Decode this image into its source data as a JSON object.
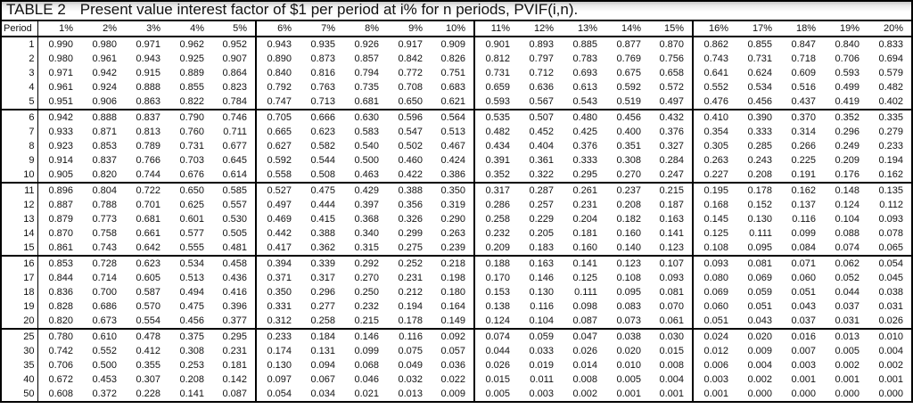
{
  "title": {
    "label": "TABLE 2",
    "description": "Present value interest factor of $1 per period at i% for n periods, PVIF(i,n)."
  },
  "colors": {
    "text": "#111111",
    "border": "#000000",
    "background": "#ffffff",
    "title_gradient_top": "#c7c7c7"
  },
  "table": {
    "period_header": "Period",
    "rate_headers": [
      "1%",
      "2%",
      "3%",
      "4%",
      "5%",
      "6%",
      "7%",
      "8%",
      "9%",
      "10%",
      "11%",
      "12%",
      "13%",
      "14%",
      "15%",
      "16%",
      "17%",
      "18%",
      "19%",
      "20%"
    ],
    "band_end_periods": [
      "5",
      "10",
      "15",
      "20"
    ],
    "rows": [
      {
        "period": "1",
        "values": [
          "0.990",
          "0.980",
          "0.971",
          "0.962",
          "0.952",
          "0.943",
          "0.935",
          "0.926",
          "0.917",
          "0.909",
          "0.901",
          "0.893",
          "0.885",
          "0.877",
          "0.870",
          "0.862",
          "0.855",
          "0.847",
          "0.840",
          "0.833"
        ]
      },
      {
        "period": "2",
        "values": [
          "0.980",
          "0.961",
          "0.943",
          "0.925",
          "0.907",
          "0.890",
          "0.873",
          "0.857",
          "0.842",
          "0.826",
          "0.812",
          "0.797",
          "0.783",
          "0.769",
          "0.756",
          "0.743",
          "0.731",
          "0.718",
          "0.706",
          "0.694"
        ]
      },
      {
        "period": "3",
        "values": [
          "0.971",
          "0.942",
          "0.915",
          "0.889",
          "0.864",
          "0.840",
          "0.816",
          "0.794",
          "0.772",
          "0.751",
          "0.731",
          "0.712",
          "0.693",
          "0.675",
          "0.658",
          "0.641",
          "0.624",
          "0.609",
          "0.593",
          "0.579"
        ]
      },
      {
        "period": "4",
        "values": [
          "0.961",
          "0.924",
          "0.888",
          "0.855",
          "0.823",
          "0.792",
          "0.763",
          "0.735",
          "0.708",
          "0.683",
          "0.659",
          "0.636",
          "0.613",
          "0.592",
          "0.572",
          "0.552",
          "0.534",
          "0.516",
          "0.499",
          "0.482"
        ]
      },
      {
        "period": "5",
        "values": [
          "0.951",
          "0.906",
          "0.863",
          "0.822",
          "0.784",
          "0.747",
          "0.713",
          "0.681",
          "0.650",
          "0.621",
          "0.593",
          "0.567",
          "0.543",
          "0.519",
          "0.497",
          "0.476",
          "0.456",
          "0.437",
          "0.419",
          "0.402"
        ]
      },
      {
        "period": "6",
        "values": [
          "0.942",
          "0.888",
          "0.837",
          "0.790",
          "0.746",
          "0.705",
          "0.666",
          "0.630",
          "0.596",
          "0.564",
          "0.535",
          "0.507",
          "0.480",
          "0.456",
          "0.432",
          "0.410",
          "0.390",
          "0.370",
          "0.352",
          "0.335"
        ]
      },
      {
        "period": "7",
        "values": [
          "0.933",
          "0.871",
          "0.813",
          "0.760",
          "0.711",
          "0.665",
          "0.623",
          "0.583",
          "0.547",
          "0.513",
          "0.482",
          "0.452",
          "0.425",
          "0.400",
          "0.376",
          "0.354",
          "0.333",
          "0.314",
          "0.296",
          "0.279"
        ]
      },
      {
        "period": "8",
        "values": [
          "0.923",
          "0.853",
          "0.789",
          "0.731",
          "0.677",
          "0.627",
          "0.582",
          "0.540",
          "0.502",
          "0.467",
          "0.434",
          "0.404",
          "0.376",
          "0.351",
          "0.327",
          "0.305",
          "0.285",
          "0.266",
          "0.249",
          "0.233"
        ]
      },
      {
        "period": "9",
        "values": [
          "0.914",
          "0.837",
          "0.766",
          "0.703",
          "0.645",
          "0.592",
          "0.544",
          "0.500",
          "0.460",
          "0.424",
          "0.391",
          "0.361",
          "0.333",
          "0.308",
          "0.284",
          "0.263",
          "0.243",
          "0.225",
          "0.209",
          "0.194"
        ]
      },
      {
        "period": "10",
        "values": [
          "0.905",
          "0.820",
          "0.744",
          "0.676",
          "0.614",
          "0.558",
          "0.508",
          "0.463",
          "0.422",
          "0.386",
          "0.352",
          "0.322",
          "0.295",
          "0.270",
          "0.247",
          "0.227",
          "0.208",
          "0.191",
          "0.176",
          "0.162"
        ]
      },
      {
        "period": "11",
        "values": [
          "0.896",
          "0.804",
          "0.722",
          "0.650",
          "0.585",
          "0.527",
          "0.475",
          "0.429",
          "0.388",
          "0.350",
          "0.317",
          "0.287",
          "0.261",
          "0.237",
          "0.215",
          "0.195",
          "0.178",
          "0.162",
          "0.148",
          "0.135"
        ]
      },
      {
        "period": "12",
        "values": [
          "0.887",
          "0.788",
          "0.701",
          "0.625",
          "0.557",
          "0.497",
          "0.444",
          "0.397",
          "0.356",
          "0.319",
          "0.286",
          "0.257",
          "0.231",
          "0.208",
          "0.187",
          "0.168",
          "0.152",
          "0.137",
          "0.124",
          "0.112"
        ]
      },
      {
        "period": "13",
        "values": [
          "0.879",
          "0.773",
          "0.681",
          "0.601",
          "0.530",
          "0.469",
          "0.415",
          "0.368",
          "0.326",
          "0.290",
          "0.258",
          "0.229",
          "0.204",
          "0.182",
          "0.163",
          "0.145",
          "0.130",
          "0.116",
          "0.104",
          "0.093"
        ]
      },
      {
        "period": "14",
        "values": [
          "0.870",
          "0.758",
          "0.661",
          "0.577",
          "0.505",
          "0.442",
          "0.388",
          "0.340",
          "0.299",
          "0.263",
          "0.232",
          "0.205",
          "0.181",
          "0.160",
          "0.141",
          "0.125",
          "0.111",
          "0.099",
          "0.088",
          "0.078"
        ]
      },
      {
        "period": "15",
        "values": [
          "0.861",
          "0.743",
          "0.642",
          "0.555",
          "0.481",
          "0.417",
          "0.362",
          "0.315",
          "0.275",
          "0.239",
          "0.209",
          "0.183",
          "0.160",
          "0.140",
          "0.123",
          "0.108",
          "0.095",
          "0.084",
          "0.074",
          "0.065"
        ]
      },
      {
        "period": "16",
        "values": [
          "0.853",
          "0.728",
          "0.623",
          "0.534",
          "0.458",
          "0.394",
          "0.339",
          "0.292",
          "0.252",
          "0.218",
          "0.188",
          "0.163",
          "0.141",
          "0.123",
          "0.107",
          "0.093",
          "0.081",
          "0.071",
          "0.062",
          "0.054"
        ]
      },
      {
        "period": "17",
        "values": [
          "0.844",
          "0.714",
          "0.605",
          "0.513",
          "0.436",
          "0.371",
          "0.317",
          "0.270",
          "0.231",
          "0.198",
          "0.170",
          "0.146",
          "0.125",
          "0.108",
          "0.093",
          "0.080",
          "0.069",
          "0.060",
          "0.052",
          "0.045"
        ]
      },
      {
        "period": "18",
        "values": [
          "0.836",
          "0.700",
          "0.587",
          "0.494",
          "0.416",
          "0.350",
          "0.296",
          "0.250",
          "0.212",
          "0.180",
          "0.153",
          "0.130",
          "0.111",
          "0.095",
          "0.081",
          "0.069",
          "0.059",
          "0.051",
          "0.044",
          "0.038"
        ]
      },
      {
        "period": "19",
        "values": [
          "0.828",
          "0.686",
          "0.570",
          "0.475",
          "0.396",
          "0.331",
          "0.277",
          "0.232",
          "0.194",
          "0.164",
          "0.138",
          "0.116",
          "0.098",
          "0.083",
          "0.070",
          "0.060",
          "0.051",
          "0.043",
          "0.037",
          "0.031"
        ]
      },
      {
        "period": "20",
        "values": [
          "0.820",
          "0.673",
          "0.554",
          "0.456",
          "0.377",
          "0.312",
          "0.258",
          "0.215",
          "0.178",
          "0.149",
          "0.124",
          "0.104",
          "0.087",
          "0.073",
          "0.061",
          "0.051",
          "0.043",
          "0.037",
          "0.031",
          "0.026"
        ]
      },
      {
        "period": "25",
        "values": [
          "0.780",
          "0.610",
          "0.478",
          "0.375",
          "0.295",
          "0.233",
          "0.184",
          "0.146",
          "0.116",
          "0.092",
          "0.074",
          "0.059",
          "0.047",
          "0.038",
          "0.030",
          "0.024",
          "0.020",
          "0.016",
          "0.013",
          "0.010"
        ]
      },
      {
        "period": "30",
        "values": [
          "0.742",
          "0.552",
          "0.412",
          "0.308",
          "0.231",
          "0.174",
          "0.131",
          "0.099",
          "0.075",
          "0.057",
          "0.044",
          "0.033",
          "0.026",
          "0.020",
          "0.015",
          "0.012",
          "0.009",
          "0.007",
          "0.005",
          "0.004"
        ]
      },
      {
        "period": "35",
        "values": [
          "0.706",
          "0.500",
          "0.355",
          "0.253",
          "0.181",
          "0.130",
          "0.094",
          "0.068",
          "0.049",
          "0.036",
          "0.026",
          "0.019",
          "0.014",
          "0.010",
          "0.008",
          "0.006",
          "0.004",
          "0.003",
          "0.002",
          "0.002"
        ]
      },
      {
        "period": "40",
        "values": [
          "0.672",
          "0.453",
          "0.307",
          "0.208",
          "0.142",
          "0.097",
          "0.067",
          "0.046",
          "0.032",
          "0.022",
          "0.015",
          "0.011",
          "0.008",
          "0.005",
          "0.004",
          "0.003",
          "0.002",
          "0.001",
          "0.001",
          "0.001"
        ]
      },
      {
        "period": "50",
        "values": [
          "0.608",
          "0.372",
          "0.228",
          "0.141",
          "0.087",
          "0.054",
          "0.034",
          "0.021",
          "0.013",
          "0.009",
          "0.005",
          "0.003",
          "0.002",
          "0.001",
          "0.001",
          "0.001",
          "0.000",
          "0.000",
          "0.000",
          "0.000"
        ]
      }
    ]
  }
}
